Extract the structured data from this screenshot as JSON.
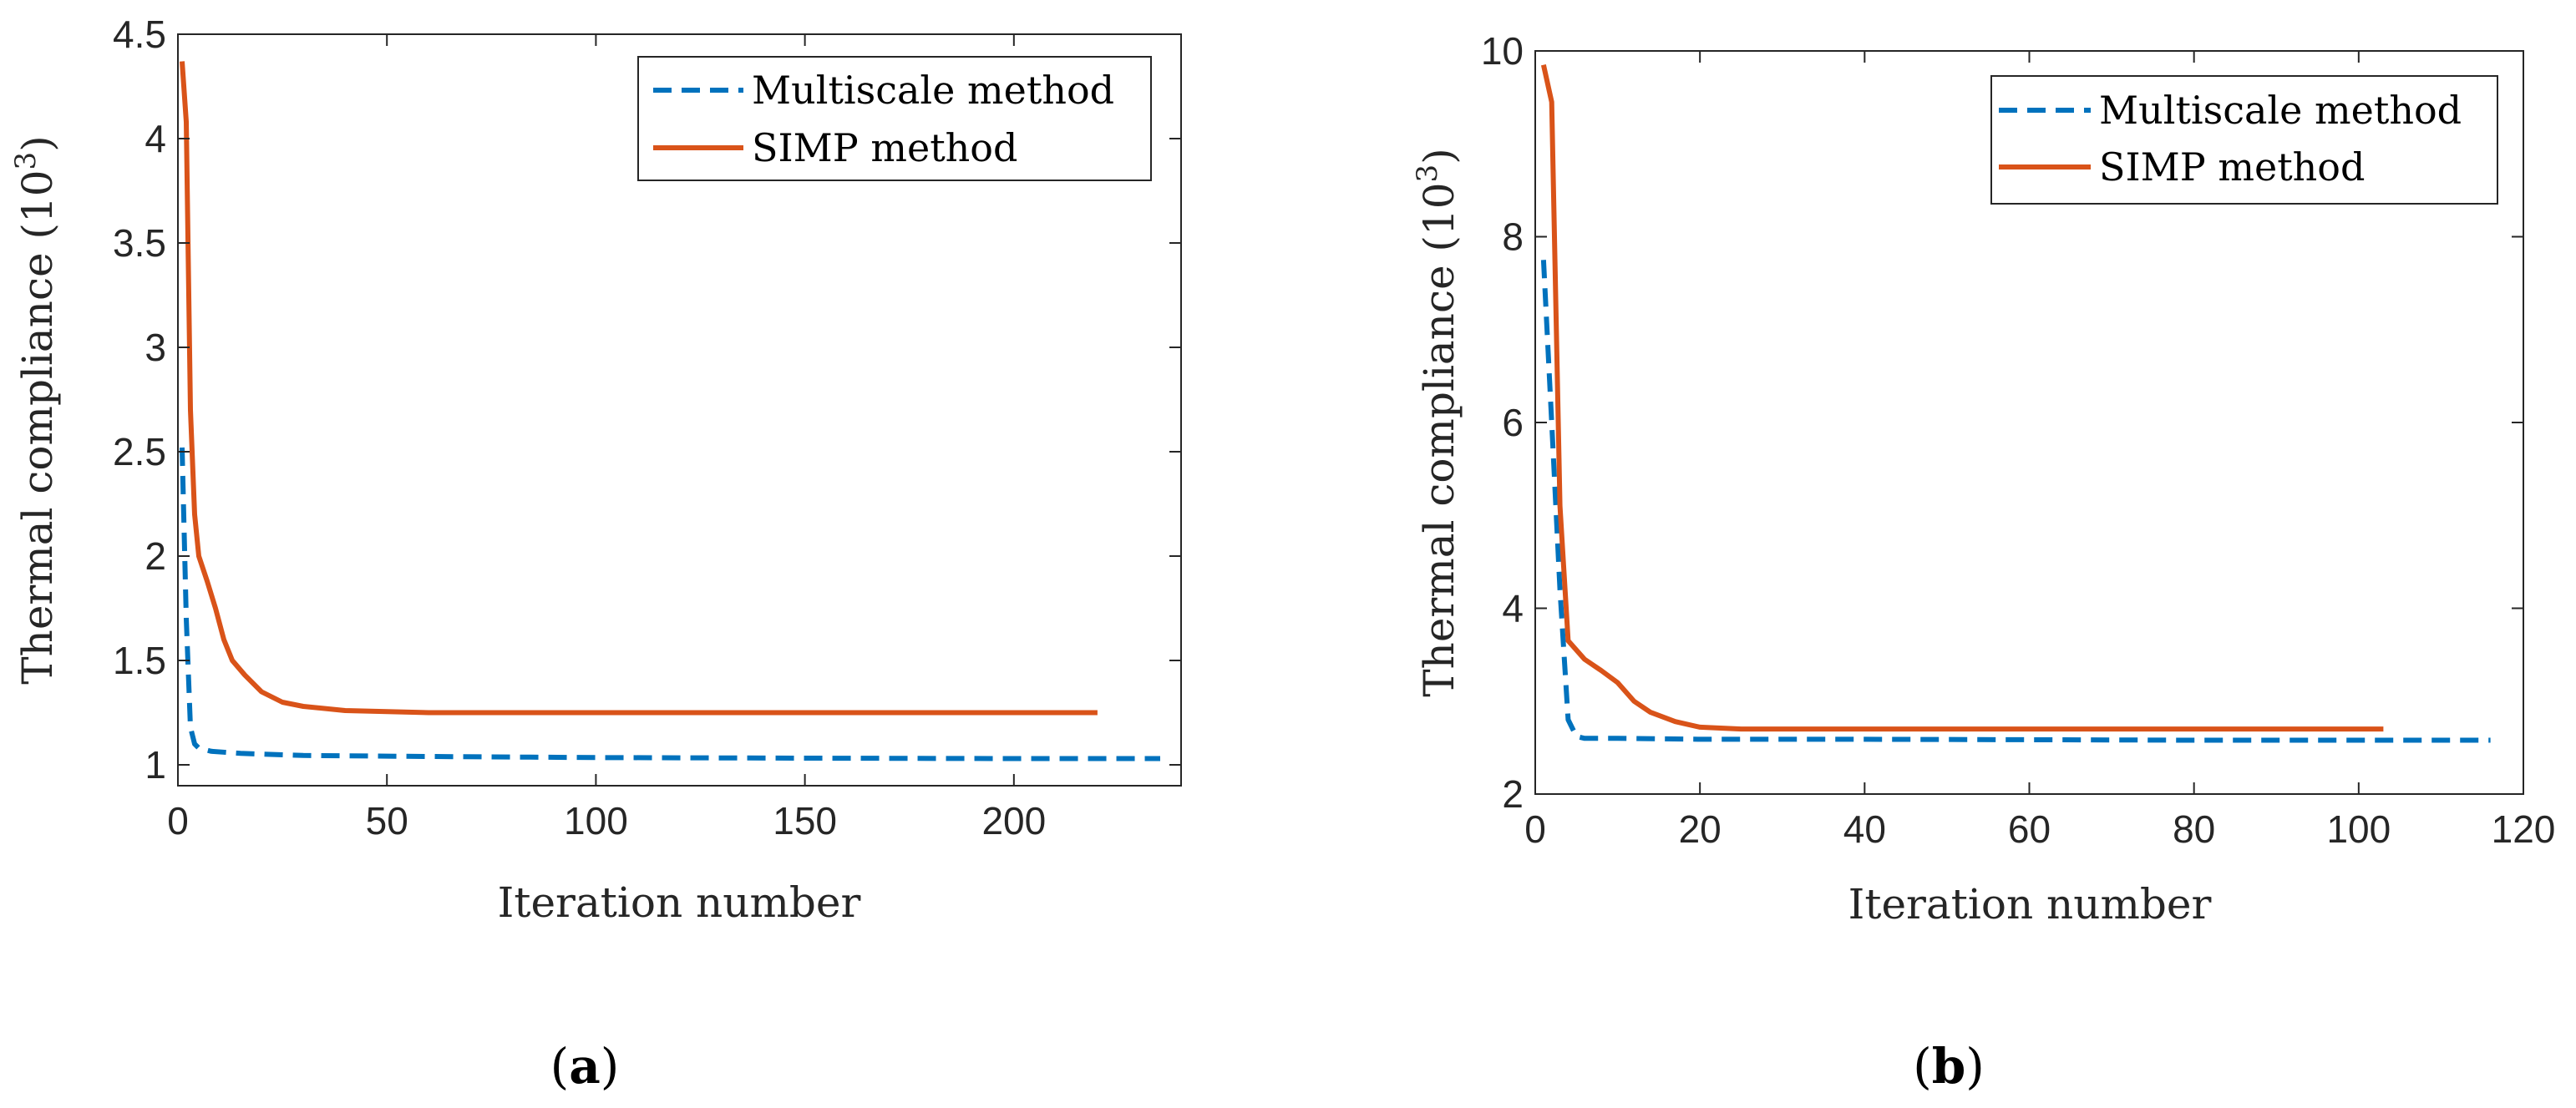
{
  "chart_data": [
    {
      "type": "line",
      "panel_label": "a",
      "caption_open": "(",
      "caption_close": ")",
      "xlabel": "Iteration number",
      "ylabel_prefix": "Thermal compliance (10",
      "ylabel_exponent": "3",
      "ylabel_suffix": ")",
      "xlim": [
        0,
        240
      ],
      "ylim": [
        0.9,
        4.5
      ],
      "xticks": [
        0,
        50,
        100,
        150,
        200
      ],
      "xtick_labels": [
        "0",
        "50",
        "100",
        "150",
        "200"
      ],
      "yticks": [
        1,
        1.5,
        2,
        2.5,
        3,
        3.5,
        4,
        4.5
      ],
      "ytick_labels": [
        "1",
        "1.5",
        "2",
        "2.5",
        "3",
        "3.5",
        "4",
        "4.5"
      ],
      "legend_position": "top-right",
      "series": [
        {
          "name": "Multiscale method",
          "style": "dashed",
          "color": "#0072BD",
          "points": [
            [
              1,
              2.52
            ],
            [
              2,
              1.7
            ],
            [
              3,
              1.18
            ],
            [
              4,
              1.1
            ],
            [
              5,
              1.08
            ],
            [
              8,
              1.065
            ],
            [
              15,
              1.055
            ],
            [
              30,
              1.045
            ],
            [
              60,
              1.04
            ],
            [
              100,
              1.035
            ],
            [
              150,
              1.032
            ],
            [
              200,
              1.03
            ],
            [
              235,
              1.03
            ]
          ]
        },
        {
          "name": "SIMP method",
          "style": "solid",
          "color": "#D95319",
          "points": [
            [
              1,
              4.37
            ],
            [
              2,
              4.08
            ],
            [
              3,
              2.7
            ],
            [
              4,
              2.2
            ],
            [
              5,
              2.0
            ],
            [
              7,
              1.88
            ],
            [
              9,
              1.75
            ],
            [
              11,
              1.6
            ],
            [
              13,
              1.5
            ],
            [
              16,
              1.43
            ],
            [
              20,
              1.35
            ],
            [
              25,
              1.3
            ],
            [
              30,
              1.28
            ],
            [
              40,
              1.26
            ],
            [
              60,
              1.25
            ],
            [
              100,
              1.25
            ],
            [
              150,
              1.25
            ],
            [
              220,
              1.25
            ]
          ]
        }
      ]
    },
    {
      "type": "line",
      "panel_label": "b",
      "caption_open": "(",
      "caption_close": ")",
      "xlabel": "Iteration number",
      "ylabel_prefix": "Thermal compliance (10",
      "ylabel_exponent": "3",
      "ylabel_suffix": ")",
      "xlim": [
        0,
        120
      ],
      "ylim": [
        2,
        10
      ],
      "xticks": [
        0,
        20,
        40,
        60,
        80,
        100,
        120
      ],
      "xtick_labels": [
        "0",
        "20",
        "40",
        "60",
        "80",
        "100",
        "120"
      ],
      "yticks": [
        2,
        4,
        6,
        8,
        10
      ],
      "ytick_labels": [
        "2",
        "4",
        "6",
        "8",
        "10"
      ],
      "legend_position": "top-right",
      "series": [
        {
          "name": "Multiscale method",
          "style": "dashed",
          "color": "#0072BD",
          "points": [
            [
              1,
              7.75
            ],
            [
              2,
              6.0
            ],
            [
              3,
              4.2
            ],
            [
              4,
              2.8
            ],
            [
              5,
              2.62
            ],
            [
              6,
              2.6
            ],
            [
              10,
              2.6
            ],
            [
              20,
              2.59
            ],
            [
              40,
              2.59
            ],
            [
              80,
              2.58
            ],
            [
              116,
              2.58
            ]
          ]
        },
        {
          "name": "SIMP method",
          "style": "solid",
          "color": "#D95319",
          "points": [
            [
              1,
              9.85
            ],
            [
              2,
              9.45
            ],
            [
              3,
              5.1
            ],
            [
              4,
              3.65
            ],
            [
              6,
              3.45
            ],
            [
              8,
              3.33
            ],
            [
              10,
              3.2
            ],
            [
              12,
              3.0
            ],
            [
              14,
              2.88
            ],
            [
              17,
              2.78
            ],
            [
              20,
              2.72
            ],
            [
              25,
              2.7
            ],
            [
              40,
              2.7
            ],
            [
              70,
              2.7
            ],
            [
              103,
              2.7
            ]
          ]
        }
      ]
    }
  ]
}
